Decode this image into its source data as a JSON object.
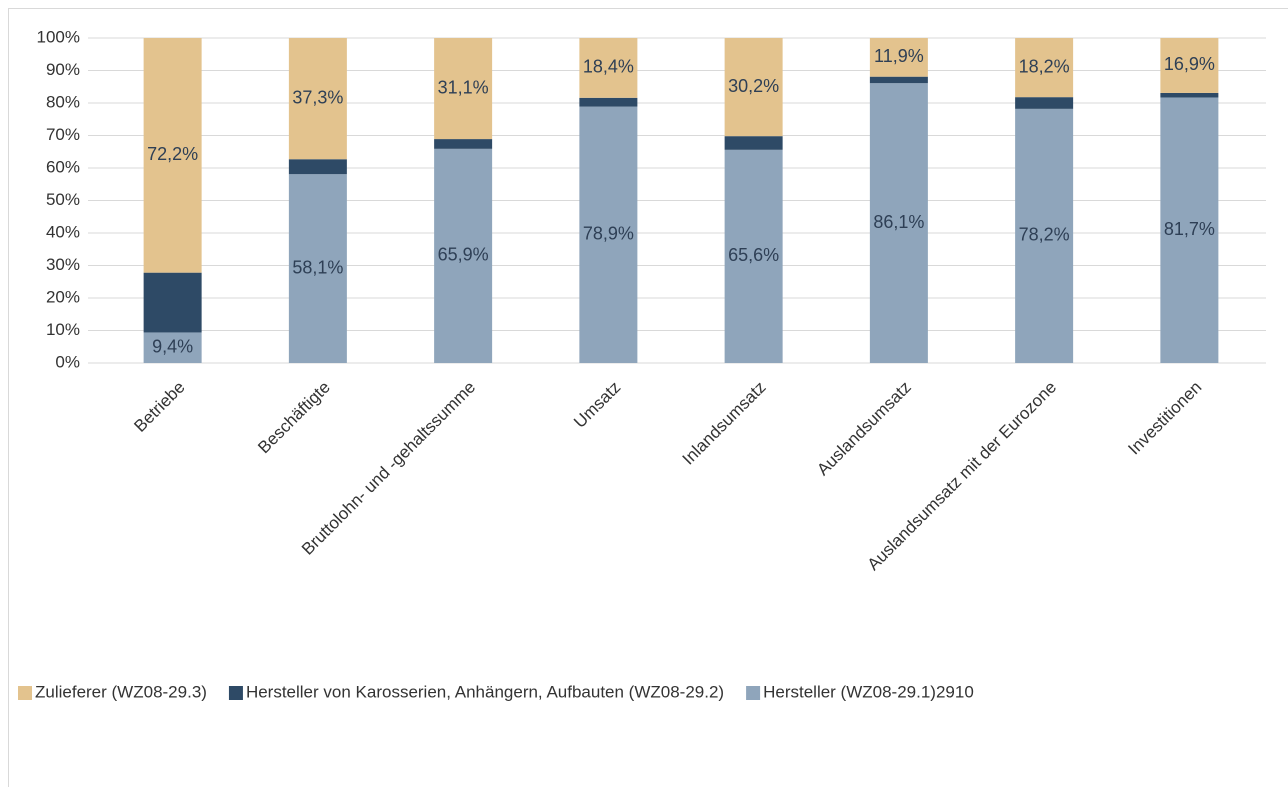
{
  "chart_data": {
    "type": "bar",
    "stacked": true,
    "categories": [
      "Betriebe",
      "Beschäftigte",
      "Bruttolohn- und -gehaltssumme",
      "Umsatz",
      "Inlandsumsatz",
      "Auslandsumsatz",
      "Auslandsumsatz mit der Eurozone",
      "Investitionen"
    ],
    "series": [
      {
        "name": "Hersteller (WZ08-29.1)2910",
        "color": "#8fa5bb",
        "values": [
          9.4,
          58.1,
          65.9,
          78.9,
          65.6,
          86.1,
          78.2,
          81.7
        ],
        "value_labels": [
          "9,4%",
          "58,1%",
          "65,9%",
          "78,9%",
          "65,6%",
          "86,1%",
          "78,2%",
          "81,7%"
        ]
      },
      {
        "name": "Hersteller von Karosserien, Anhängern, Aufbauten (WZ08-29.2)",
        "color": "#2e4a66",
        "values": [
          18.4,
          4.6,
          3.0,
          2.7,
          4.2,
          2.0,
          3.6,
          1.4
        ]
      },
      {
        "name": "Zulieferer (WZ08-29.3)",
        "color": "#e3c38e",
        "values": [
          72.2,
          37.3,
          31.1,
          18.4,
          30.2,
          11.9,
          18.2,
          16.9
        ],
        "value_labels": [
          "72,2%",
          "37,3%",
          "31,1%",
          "18,4%",
          "30,2%",
          "11,9%",
          "18,2%",
          "16,9%"
        ]
      }
    ],
    "ylim": [
      0,
      100
    ],
    "yticks": [
      {
        "value": 0,
        "label": "0%"
      },
      {
        "value": 10,
        "label": "10%"
      },
      {
        "value": 20,
        "label": "20%"
      },
      {
        "value": 30,
        "label": "30%"
      },
      {
        "value": 40,
        "label": "40%"
      },
      {
        "value": 50,
        "label": "50%"
      },
      {
        "value": 60,
        "label": "60%"
      },
      {
        "value": 70,
        "label": "70%"
      },
      {
        "value": 80,
        "label": "80%"
      },
      {
        "value": 90,
        "label": "90%"
      },
      {
        "value": 100,
        "label": "100%"
      }
    ],
    "grid": true,
    "legend": "bottom"
  }
}
